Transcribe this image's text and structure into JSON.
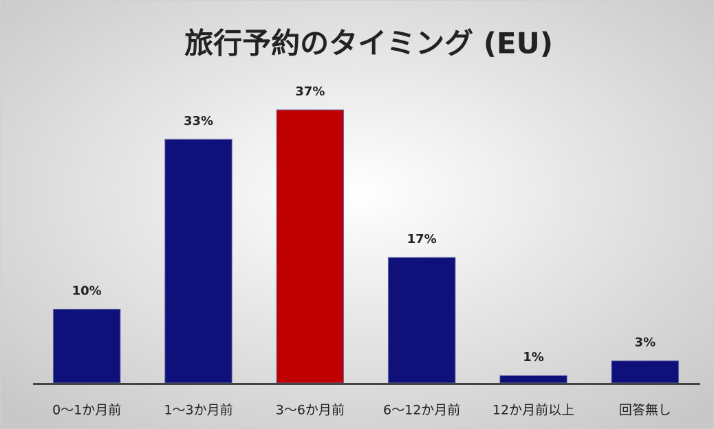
{
  "chart_data": {
    "type": "bar",
    "title": "旅行予約のタイミング (EU)",
    "categories": [
      "0～1か月前",
      "1～3か月前",
      "3～6か月前",
      "6～12か月前",
      "12か月前以上",
      "回答無し"
    ],
    "values": [
      10,
      33,
      37,
      17,
      1,
      3
    ],
    "value_labels": [
      "10%",
      "33%",
      "37%",
      "17%",
      "1%",
      "3%"
    ],
    "colors": [
      "#10107a",
      "#10107a",
      "#c00000",
      "#10107a",
      "#10107a",
      "#10107a"
    ]
  }
}
